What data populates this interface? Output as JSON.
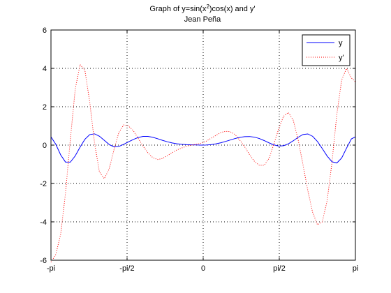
{
  "chart_data": {
    "type": "line",
    "title_line1_prefix": "Graph of y=sin(x",
    "title_line1_sup": "2",
    "title_line1_suffix": ")cos(x) and y'",
    "title_line2": "Jean Peña",
    "xlabel": "",
    "ylabel": "",
    "xlim": [
      -3.14159,
      3.14159
    ],
    "ylim": [
      -6,
      6
    ],
    "x_ticks": [
      -3.14159,
      -1.5708,
      0,
      1.5708,
      3.14159
    ],
    "x_tick_labels": [
      "-pi",
      "-pi/2",
      "0",
      "pi/2",
      "pi"
    ],
    "y_ticks": [
      -6,
      -4,
      -2,
      0,
      2,
      4,
      6
    ],
    "y_tick_labels": [
      "-6",
      "-4",
      "-2",
      "0",
      "2",
      "4",
      "6"
    ],
    "grid": true,
    "legend_position": "top-right",
    "x": [
      -3.1416,
      -3.0416,
      -2.9416,
      -2.8416,
      -2.7416,
      -2.6416,
      -2.5416,
      -2.4416,
      -2.3416,
      -2.2416,
      -2.1416,
      -2.0416,
      -1.9416,
      -1.8416,
      -1.7416,
      -1.6416,
      -1.5416,
      -1.4416,
      -1.3416,
      -1.2416,
      -1.1416,
      -1.0416,
      -0.9416,
      -0.8416,
      -0.7416,
      -0.6416,
      -0.5416,
      -0.4416,
      -0.3416,
      -0.2416,
      -0.1416,
      -0.0416,
      0.0584,
      0.1584,
      0.2584,
      0.3584,
      0.4584,
      0.5584,
      0.6584,
      0.7584,
      0.8584,
      0.9584,
      1.0584,
      1.1584,
      1.2584,
      1.3584,
      1.4584,
      1.5584,
      1.6584,
      1.7584,
      1.8584,
      1.9584,
      2.0584,
      2.1584,
      2.2584,
      2.3584,
      2.4584,
      2.5584,
      2.6584,
      2.7584,
      2.8584,
      2.9584,
      3.0584,
      3.1416
    ],
    "series": [
      {
        "name": "y",
        "color": "#0000ff",
        "style": "solid",
        "values": [
          0.4303,
          0.0413,
          -0.5082,
          -0.8848,
          -0.8883,
          -0.5637,
          -0.1086,
          0.3018,
          0.5477,
          0.5875,
          0.463,
          0.25,
          0.0347,
          -0.0893,
          -0.0694,
          0.0401,
          0.1688,
          0.294,
          0.3967,
          0.4549,
          0.4551,
          0.4078,
          0.3334,
          0.2509,
          0.1747,
          0.1132,
          0.069,
          0.0391,
          0.0238,
          0.0155,
          0.0114,
          0.0017,
          0.0034,
          0.0247,
          0.064,
          0.1194,
          0.1886,
          0.2662,
          0.3434,
          0.4035,
          0.4416,
          0.4478,
          0.4153,
          0.343,
          0.237,
          0.1187,
          0.0127,
          -0.0503,
          -0.0325,
          0.0668,
          0.2231,
          0.405,
          0.5514,
          0.5831,
          0.4599,
          0.1895,
          -0.1815,
          -0.5703,
          -0.8681,
          -0.9327,
          -0.6701,
          -0.162,
          0.3213,
          0.4303
        ]
      },
      {
        "name": "y'",
        "color": "#ff0000",
        "style": "dotted",
        "values": [
          -6.1,
          -5.7,
          -4.65,
          -2.5,
          0.3,
          2.9,
          4.2,
          3.9,
          2.25,
          0.1,
          -1.4,
          -1.75,
          -1.25,
          -0.25,
          0.65,
          1.05,
          1.0,
          0.75,
          0.35,
          -0.05,
          -0.4,
          -0.65,
          -0.75,
          -0.7,
          -0.55,
          -0.4,
          -0.25,
          -0.15,
          -0.05,
          0.0,
          0.05,
          0.1,
          0.2,
          0.35,
          0.5,
          0.65,
          0.72,
          0.7,
          0.55,
          0.25,
          -0.1,
          -0.5,
          -0.85,
          -1.05,
          -1.05,
          -0.7,
          0.05,
          0.85,
          1.5,
          1.7,
          1.3,
          0.3,
          -1.0,
          -2.35,
          -3.5,
          -4.15,
          -4.0,
          -2.9,
          -0.9,
          1.6,
          3.4,
          4.0,
          3.5,
          3.3
        ]
      }
    ]
  }
}
